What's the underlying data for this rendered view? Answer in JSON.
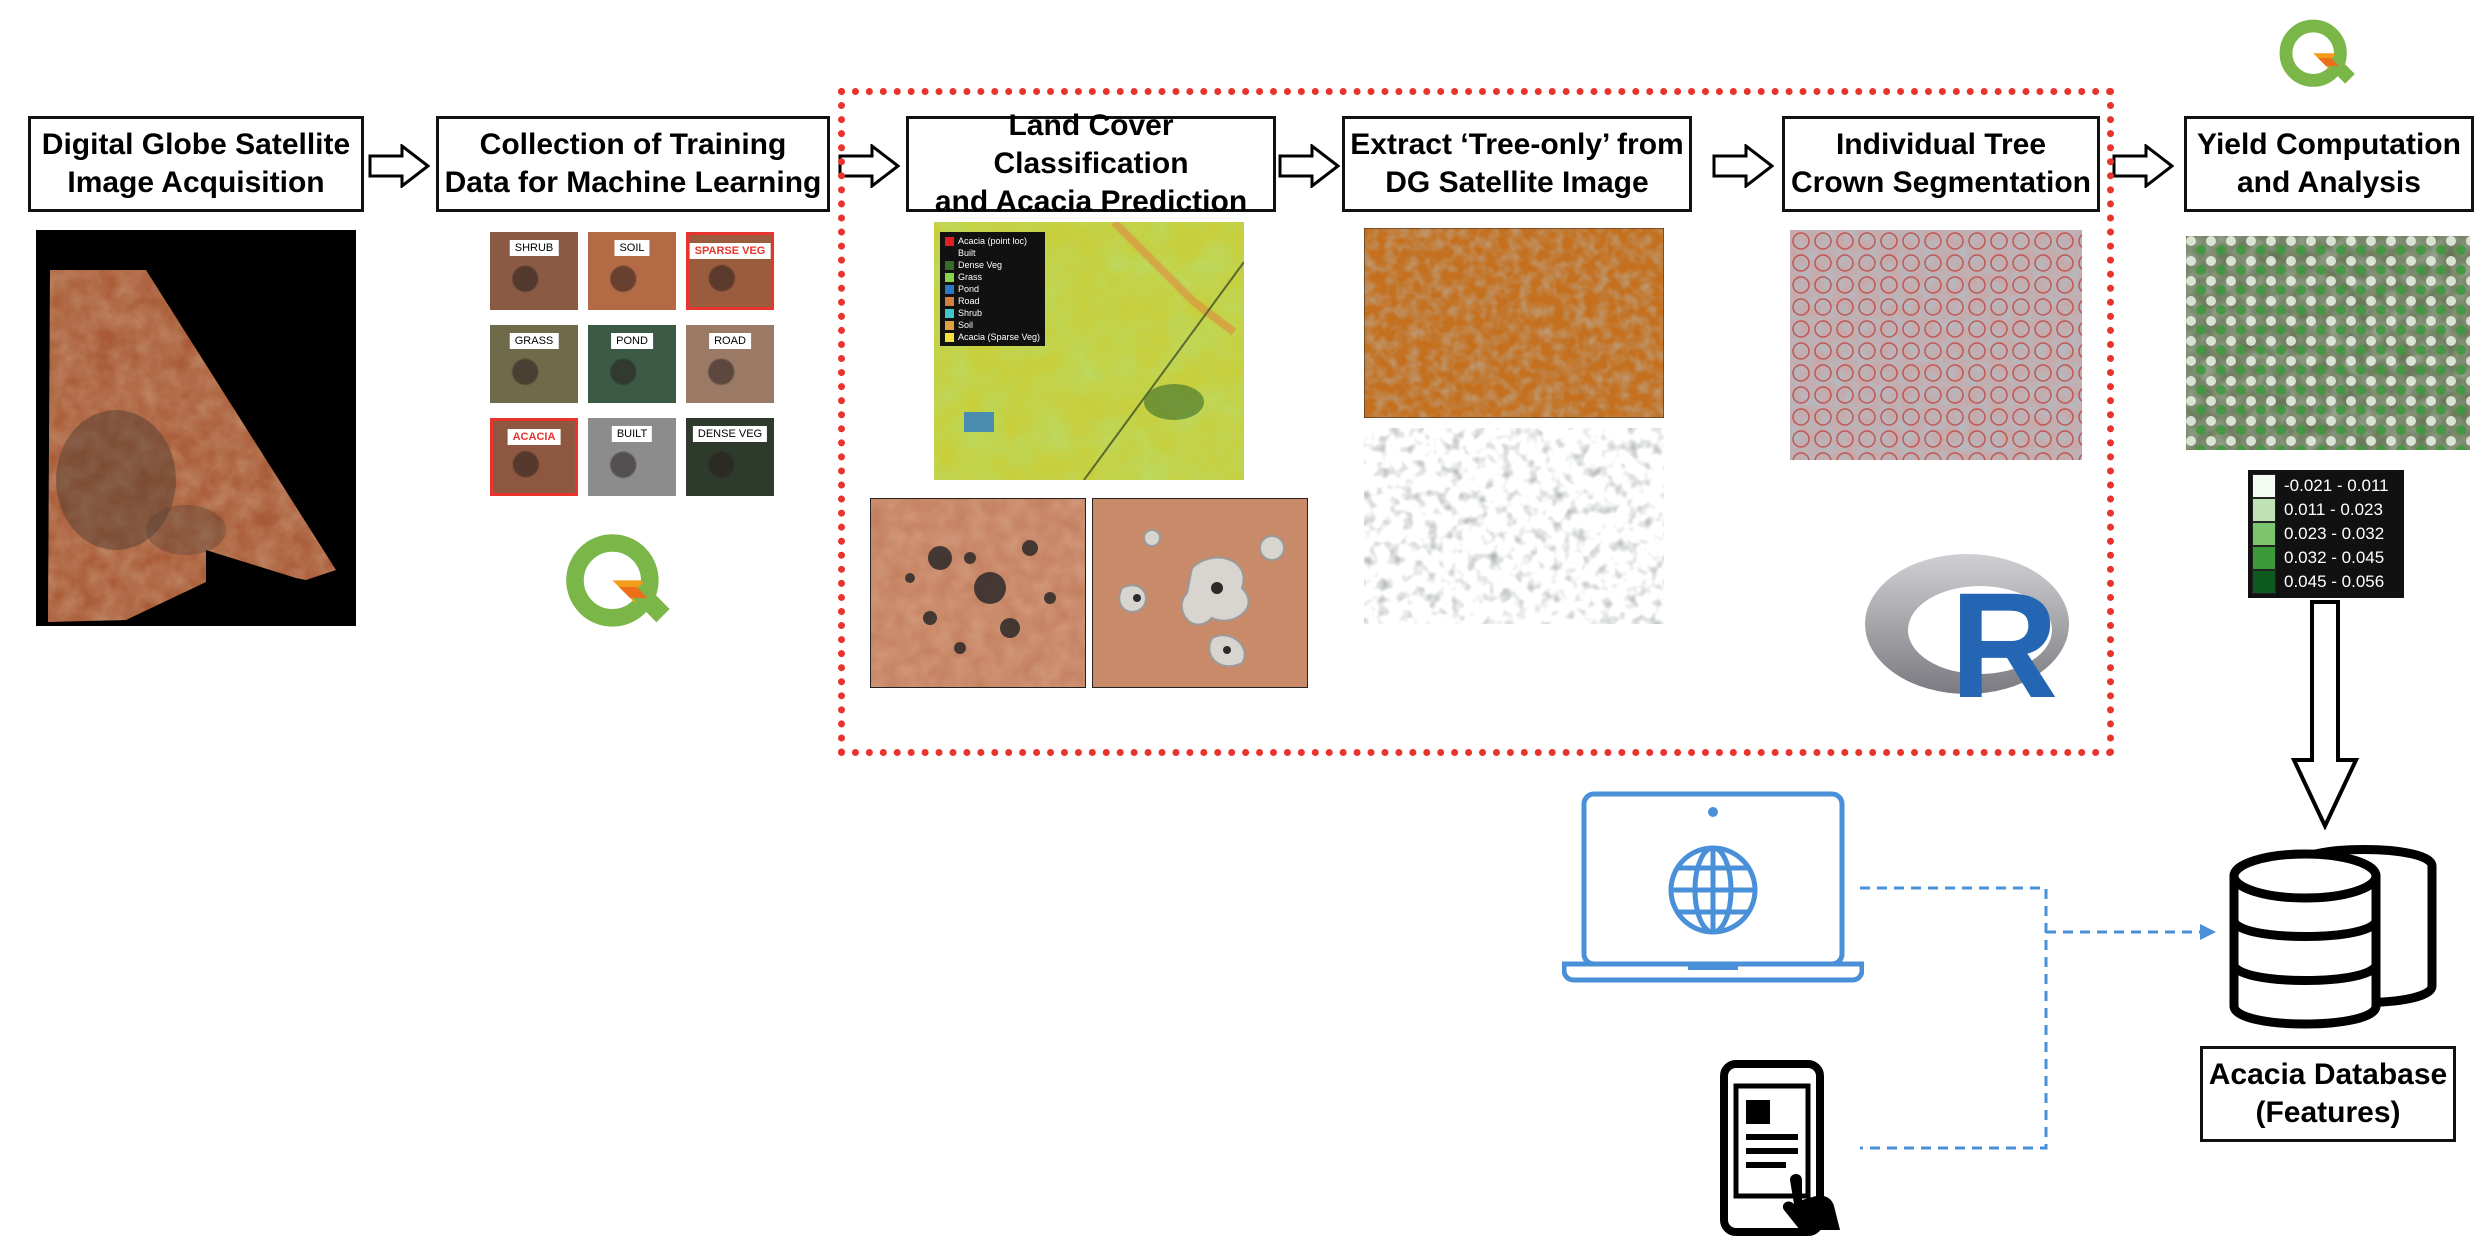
{
  "steps": {
    "acquisition": {
      "line1": "Digital Globe Satellite",
      "line2": "Image Acquisition"
    },
    "training": {
      "line1": "Collection of Training",
      "line2": "Data for Machine Learning"
    },
    "classification": {
      "line1": "Land Cover Classification",
      "line2": "and Acacia Prediction"
    },
    "extract": {
      "line1": "Extract ‘Tree-only’ from",
      "line2": "DG Satellite Image"
    },
    "segmentation": {
      "line1": "Individual Tree",
      "line2": "Crown Segmentation"
    },
    "yield": {
      "line1": "Yield Computation",
      "line2": "and Analysis"
    },
    "database": {
      "line1": "Acacia Database",
      "line2": "(Features)"
    }
  },
  "training_samples": [
    {
      "label": "SHRUB",
      "highlight": false,
      "color": "#8a5a44"
    },
    {
      "label": "SOIL",
      "highlight": false,
      "color": "#b46a45"
    },
    {
      "label": "SPARSE VEG",
      "highlight": true,
      "color": "#9a5c3c"
    },
    {
      "label": "GRASS",
      "highlight": false,
      "color": "#6e6a4a"
    },
    {
      "label": "POND",
      "highlight": false,
      "color": "#3c5a46"
    },
    {
      "label": "ROAD",
      "highlight": false,
      "color": "#9a7a64"
    },
    {
      "label": "ACACIA",
      "highlight": true,
      "color": "#8e5840"
    },
    {
      "label": "BUILT",
      "highlight": false,
      "color": "#8c8c8c"
    },
    {
      "label": "DENSE VEG",
      "highlight": false,
      "color": "#2e3a2c"
    }
  ],
  "classification_legend": [
    {
      "label": "Acacia (point loc)",
      "color": "#e02020"
    },
    {
      "label": "Built",
      "color": "#111111"
    },
    {
      "label": "Dense Veg",
      "color": "#3a6a2a"
    },
    {
      "label": "Grass",
      "color": "#8ad24a"
    },
    {
      "label": "Pond",
      "color": "#2a7ac8"
    },
    {
      "label": "Road",
      "color": "#d08040"
    },
    {
      "label": "Shrub",
      "color": "#40c8c8"
    },
    {
      "label": "Soil",
      "color": "#e0a040"
    },
    {
      "label": "Acacia (Sparse Veg)",
      "color": "#f0e040"
    }
  ],
  "yield_legend": [
    {
      "label": "-0.021 - 0.011",
      "color": "#f4fbf2"
    },
    {
      "label": "0.011 - 0.023",
      "color": "#bfe3b4"
    },
    {
      "label": "0.023 - 0.032",
      "color": "#7cc46e"
    },
    {
      "label": "0.032 - 0.045",
      "color": "#3a9a3a"
    },
    {
      "label": "0.045 - 0.056",
      "color": "#0e5a1e"
    }
  ],
  "logos": {
    "qgis_mark": "qgis-logo",
    "r_letter": "R"
  },
  "colors": {
    "highlight_border": "#e8342c",
    "connector_blue": "#4a90d9"
  }
}
